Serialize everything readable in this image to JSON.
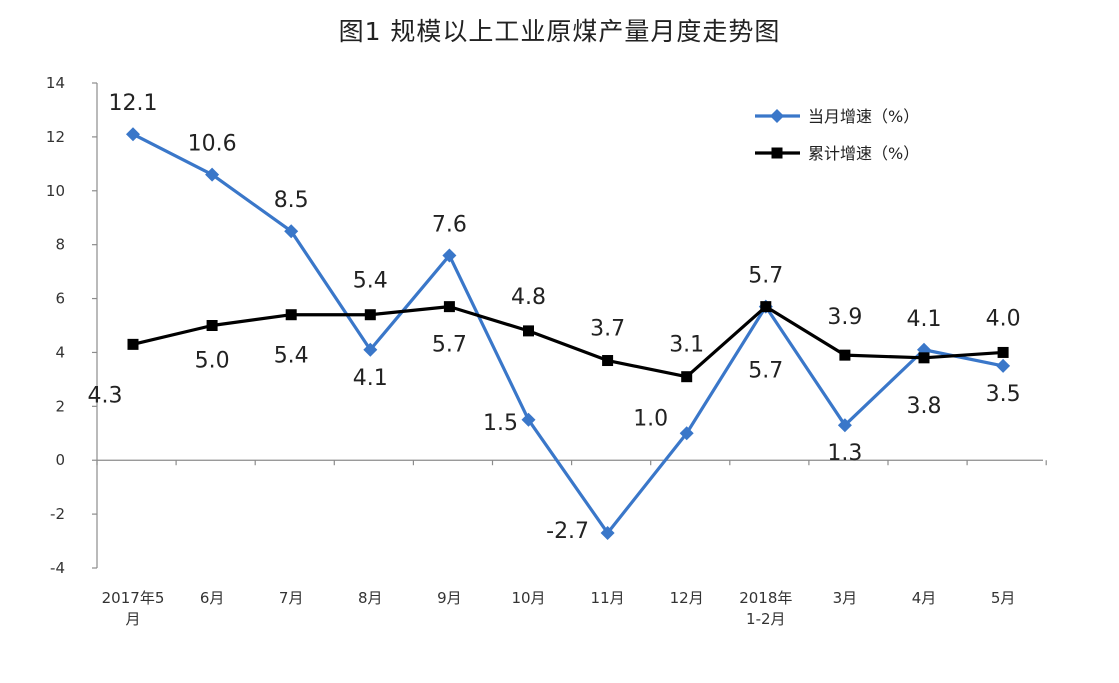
{
  "title": "图1  规模以上工业原煤产量月度走势图",
  "chart_data": {
    "type": "line",
    "title": "图1  规模以上工业原煤产量月度走势图",
    "xlabel": "",
    "ylabel": "",
    "categories": [
      [
        "2017年5",
        "月"
      ],
      [
        "6月"
      ],
      [
        "7月"
      ],
      [
        "8月"
      ],
      [
        "9月"
      ],
      [
        "10月"
      ],
      [
        "11月"
      ],
      [
        "12月"
      ],
      [
        "2018年",
        "1-2月"
      ],
      [
        "3月"
      ],
      [
        "4月"
      ],
      [
        "5月"
      ]
    ],
    "ylim": [
      -4,
      14
    ],
    "yticks": [
      "-4",
      "-2",
      "0",
      "2",
      "4",
      "6",
      "8",
      "10",
      "12",
      "14"
    ],
    "legend_position": "top-right",
    "grid": false,
    "series": [
      {
        "name": "当月增速（%）",
        "color": "#3a77c9",
        "marker": "diamond",
        "values": [
          12.1,
          10.6,
          8.5,
          4.1,
          7.6,
          1.5,
          -2.7,
          1.0,
          5.7,
          1.3,
          4.1,
          3.5
        ],
        "labels": [
          "12.1",
          "10.6",
          "8.5",
          "4.1",
          "7.6",
          "1.5",
          "-2.7",
          "1.0",
          "5.7",
          "1.3",
          "4.1",
          "3.5"
        ]
      },
      {
        "name": "累计增速（%）",
        "color": "#000000",
        "marker": "square",
        "values": [
          4.3,
          5.0,
          5.4,
          5.4,
          5.7,
          4.8,
          3.7,
          3.1,
          5.7,
          3.9,
          3.8,
          4.0
        ],
        "labels": [
          "4.3",
          "5.0",
          "5.4",
          "5.4",
          "5.7",
          "4.8",
          "3.7",
          "3.1",
          "5.7",
          "3.9",
          "3.8",
          "4.0"
        ]
      }
    ]
  }
}
